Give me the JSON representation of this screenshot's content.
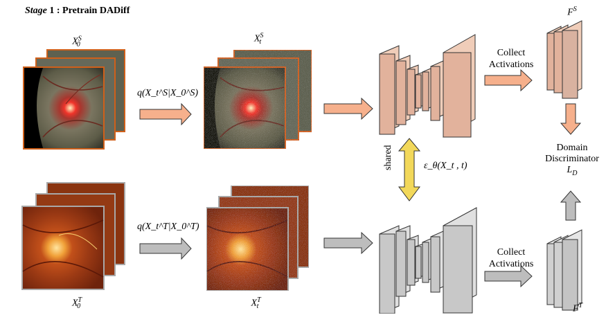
{
  "title": {
    "stage_word": "Stage",
    "rest": " 1 : Pretrain DADiff"
  },
  "labels": {
    "x0s_base": "X",
    "x0s_sub": "0",
    "x0s_sup": "S",
    "xts_base": "X",
    "xts_sub": "t",
    "xts_sup": "S",
    "x0t_base": "X",
    "x0t_sub": "0",
    "x0t_sup": "T",
    "xtt_base": "X",
    "xtt_sub": "t",
    "xtt_sup": "T",
    "fs_base": "F",
    "fs_sup": "S",
    "ft_base": "F",
    "ft_sup": "T",
    "q_source": "q(X_t^S|X_0^S)",
    "q_target": "q(X_t^T|X_0^T)",
    "shared": "shared",
    "epsilon": "ε_θ(X_t , t)",
    "collect_1": "Collect",
    "collect_2": "Activations",
    "domain_1": "Domain",
    "domain_2": "Discriminator",
    "ld_base": "L",
    "ld_sub": "D"
  },
  "colors": {
    "source_orange": "#f4b08a",
    "source_border": "#d0601a",
    "target_border": "#a8a8a8",
    "unet_orange": "#e2b29c",
    "unet_gray": "#c8c8c8",
    "arrow_orange": "#f6b08c",
    "arrow_gray": "#bdbdbd",
    "shared_yellow": "#f2d85a"
  }
}
